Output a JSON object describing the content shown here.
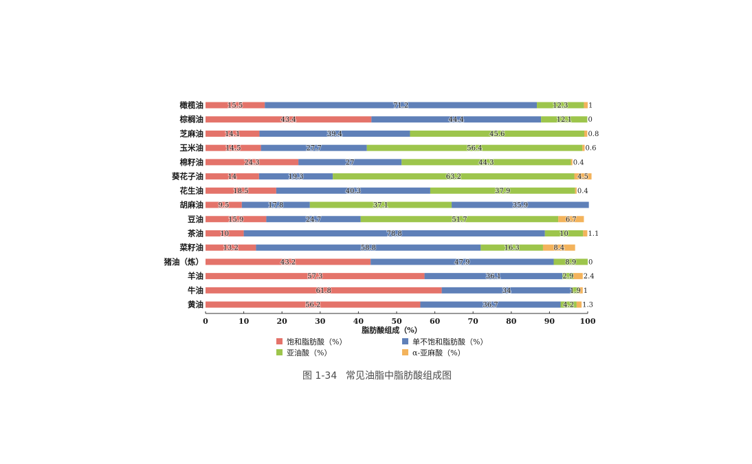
{
  "chart_data": {
    "type": "bar",
    "orientation": "horizontal",
    "stacked": true,
    "categories": [
      "橄榄油",
      "棕榈油",
      "芝麻油",
      "玉米油",
      "棉籽油",
      "葵花子油",
      "花生油",
      "胡麻油",
      "豆油",
      "茶油",
      "菜籽油",
      "猪油（炼）",
      "羊油",
      "牛油",
      "黄油"
    ],
    "series": [
      {
        "name": "饱和脂肪酸（%）",
        "color": "#e4736a",
        "values": [
          15.5,
          43.4,
          14.1,
          14.5,
          24.3,
          14,
          18.5,
          9.5,
          15.9,
          10,
          13.2,
          43.2,
          57.3,
          61.8,
          56.2
        ]
      },
      {
        "name": "单不饱和脂肪酸（%）",
        "color": "#5f80b8",
        "values": [
          71.2,
          44.4,
          39.4,
          27.7,
          27,
          19.3,
          40.3,
          17.8,
          24.7,
          78.8,
          58.8,
          47.9,
          36.1,
          34,
          36.7
        ]
      },
      {
        "name": "亚油酸（%）",
        "color": "#9dc54c",
        "values": [
          12.3,
          12.1,
          45.6,
          56.4,
          44.3,
          63.2,
          37.9,
          37.1,
          51.7,
          10,
          16.3,
          8.9,
          2.9,
          1.9,
          4.2
        ]
      },
      {
        "name": "α-亚麻酸（%）",
        "color": "#f3b35c",
        "values": [
          1,
          0,
          0.8,
          0.6,
          0.4,
          4.5,
          0.4,
          35.9,
          6.7,
          1.1,
          8.4,
          0,
          2.4,
          1,
          1.3
        ]
      }
    ],
    "color_overrides": [
      {
        "row": 7,
        "series": 3,
        "color": "#5f80b8"
      }
    ],
    "xlabel": "脂肪酸组成（%）",
    "ylabel": "",
    "xlim": [
      0,
      100
    ],
    "xticks": [
      0,
      10,
      20,
      30,
      40,
      50,
      60,
      70,
      80,
      90,
      100
    ],
    "legend_position": "bottom",
    "grid": false
  },
  "caption": {
    "figure_number": "图 1-34",
    "title": "常见油脂中脂肪酸组成图"
  }
}
